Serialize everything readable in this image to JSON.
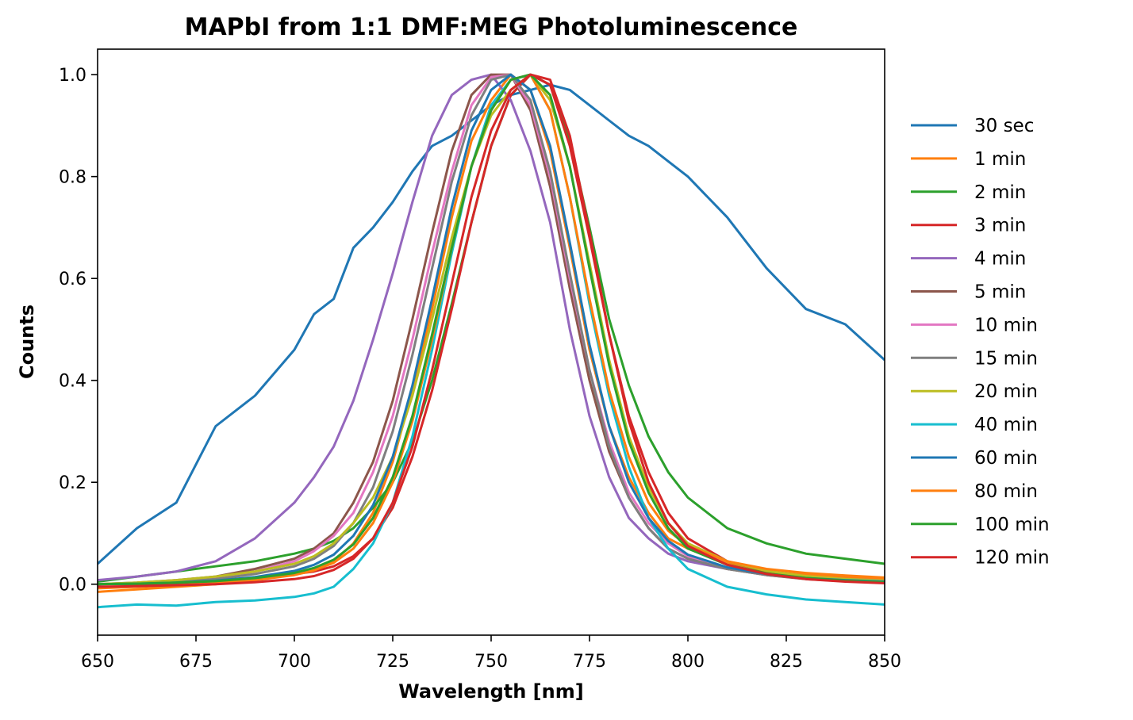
{
  "chart_data": {
    "type": "line",
    "title": "MAPbI from 1:1 DMF:MEG Photoluminescence",
    "xlabel": "Wavelength [nm]",
    "ylabel": "Counts",
    "xlim": [
      650,
      850
    ],
    "ylim": [
      -0.1,
      1.05
    ],
    "xticks": [
      "650",
      "675",
      "700",
      "725",
      "750",
      "775",
      "800",
      "825",
      "850"
    ],
    "yticks": [
      "0.0",
      "0.2",
      "0.4",
      "0.6",
      "0.8",
      "1.0"
    ],
    "grid": false,
    "legend_position": "right, outside plot",
    "x": [
      650,
      660,
      670,
      680,
      690,
      700,
      705,
      710,
      715,
      720,
      725,
      730,
      735,
      740,
      745,
      750,
      755,
      760,
      765,
      770,
      775,
      780,
      785,
      790,
      795,
      800,
      810,
      820,
      830,
      840,
      850
    ],
    "series": [
      {
        "name": "30 sec",
        "color": "#1f77b4",
        "values": [
          0.04,
          0.11,
          0.16,
          0.31,
          0.37,
          0.46,
          0.53,
          0.56,
          0.66,
          0.7,
          0.75,
          0.81,
          0.86,
          0.88,
          0.91,
          0.94,
          0.96,
          0.97,
          0.98,
          0.97,
          0.94,
          0.91,
          0.88,
          0.86,
          0.83,
          0.8,
          0.72,
          0.62,
          0.54,
          0.51,
          0.44
        ]
      },
      {
        "name": "1 min",
        "color": "#ff7f0e",
        "values": [
          -0.015,
          -0.01,
          -0.005,
          0.0,
          0.01,
          0.02,
          0.03,
          0.045,
          0.08,
          0.14,
          0.24,
          0.38,
          0.54,
          0.72,
          0.87,
          0.95,
          1.0,
          0.97,
          0.85,
          0.66,
          0.46,
          0.31,
          0.21,
          0.14,
          0.09,
          0.07,
          0.04,
          0.025,
          0.018,
          0.014,
          0.01
        ]
      },
      {
        "name": "2 min",
        "color": "#2ca02c",
        "values": [
          0.005,
          0.015,
          0.025,
          0.035,
          0.045,
          0.06,
          0.07,
          0.085,
          0.11,
          0.15,
          0.2,
          0.28,
          0.4,
          0.55,
          0.71,
          0.86,
          0.96,
          1.0,
          0.98,
          0.87,
          0.7,
          0.52,
          0.39,
          0.29,
          0.22,
          0.17,
          0.11,
          0.08,
          0.06,
          0.05,
          0.04
        ]
      },
      {
        "name": "3 min",
        "color": "#d62728",
        "values": [
          0.0,
          0.0,
          0.0,
          0.005,
          0.01,
          0.02,
          0.025,
          0.035,
          0.055,
          0.09,
          0.15,
          0.25,
          0.38,
          0.54,
          0.71,
          0.86,
          0.96,
          1.0,
          0.98,
          0.86,
          0.68,
          0.49,
          0.33,
          0.22,
          0.14,
          0.09,
          0.045,
          0.025,
          0.012,
          0.006,
          0.003
        ]
      },
      {
        "name": "4 min",
        "color": "#9467bd",
        "values": [
          0.008,
          0.015,
          0.025,
          0.045,
          0.09,
          0.16,
          0.21,
          0.27,
          0.36,
          0.48,
          0.61,
          0.75,
          0.88,
          0.96,
          0.99,
          1.0,
          0.95,
          0.85,
          0.71,
          0.5,
          0.33,
          0.21,
          0.13,
          0.09,
          0.06,
          0.045,
          0.03,
          0.02,
          0.015,
          0.01,
          0.007
        ]
      },
      {
        "name": "5 min",
        "color": "#8c564b",
        "values": [
          0.0,
          0.003,
          0.008,
          0.015,
          0.03,
          0.05,
          0.07,
          0.1,
          0.16,
          0.24,
          0.36,
          0.52,
          0.69,
          0.85,
          0.96,
          1.0,
          1.0,
          0.93,
          0.78,
          0.58,
          0.4,
          0.26,
          0.17,
          0.11,
          0.07,
          0.05,
          0.03,
          0.018,
          0.01,
          0.006,
          0.004
        ]
      },
      {
        "name": "10 min",
        "color": "#e377c2",
        "values": [
          0.0,
          0.002,
          0.006,
          0.012,
          0.025,
          0.045,
          0.065,
          0.095,
          0.14,
          0.22,
          0.33,
          0.48,
          0.65,
          0.81,
          0.94,
          0.995,
          1.0,
          0.94,
          0.8,
          0.6,
          0.42,
          0.28,
          0.18,
          0.12,
          0.08,
          0.055,
          0.032,
          0.02,
          0.012,
          0.008,
          0.005
        ]
      },
      {
        "name": "15 min",
        "color": "#7f7f7f",
        "values": [
          0.0,
          0.002,
          0.005,
          0.01,
          0.02,
          0.035,
          0.05,
          0.075,
          0.12,
          0.19,
          0.3,
          0.45,
          0.62,
          0.79,
          0.92,
          0.99,
          1.0,
          0.95,
          0.81,
          0.61,
          0.42,
          0.27,
          0.17,
          0.11,
          0.07,
          0.05,
          0.03,
          0.018,
          0.011,
          0.007,
          0.005
        ]
      },
      {
        "name": "20 min",
        "color": "#bcbd22",
        "values": [
          0.0,
          0.003,
          0.008,
          0.015,
          0.025,
          0.04,
          0.055,
          0.08,
          0.12,
          0.17,
          0.25,
          0.37,
          0.52,
          0.68,
          0.82,
          0.92,
          0.97,
          1.0,
          0.95,
          0.82,
          0.63,
          0.44,
          0.29,
          0.19,
          0.12,
          0.08,
          0.045,
          0.026,
          0.016,
          0.01,
          0.007
        ]
      },
      {
        "name": "40 min",
        "color": "#17becf",
        "values": [
          -0.045,
          -0.04,
          -0.042,
          -0.035,
          -0.032,
          -0.025,
          -0.018,
          -0.005,
          0.03,
          0.08,
          0.16,
          0.29,
          0.46,
          0.65,
          0.82,
          0.94,
          0.99,
          1.0,
          0.93,
          0.76,
          0.55,
          0.37,
          0.23,
          0.13,
          0.07,
          0.03,
          -0.005,
          -0.02,
          -0.03,
          -0.035,
          -0.04
        ]
      },
      {
        "name": "60 min",
        "color": "#1f77b4",
        "values": [
          0.0,
          0.001,
          0.003,
          0.007,
          0.014,
          0.026,
          0.038,
          0.058,
          0.095,
          0.155,
          0.25,
          0.39,
          0.56,
          0.74,
          0.89,
          0.97,
          1.0,
          0.97,
          0.86,
          0.67,
          0.47,
          0.31,
          0.2,
          0.13,
          0.085,
          0.058,
          0.033,
          0.02,
          0.012,
          0.008,
          0.005
        ]
      },
      {
        "name": "80 min",
        "color": "#ff7f0e",
        "values": [
          -0.008,
          -0.005,
          -0.002,
          0.002,
          0.008,
          0.018,
          0.027,
          0.042,
          0.07,
          0.12,
          0.2,
          0.32,
          0.48,
          0.66,
          0.82,
          0.93,
          0.99,
          1.0,
          0.93,
          0.76,
          0.56,
          0.38,
          0.25,
          0.16,
          0.105,
          0.075,
          0.045,
          0.03,
          0.022,
          0.017,
          0.013
        ]
      },
      {
        "name": "100 min",
        "color": "#2ca02c",
        "values": [
          0.0,
          0.001,
          0.003,
          0.006,
          0.012,
          0.022,
          0.032,
          0.048,
          0.078,
          0.13,
          0.21,
          0.33,
          0.49,
          0.66,
          0.82,
          0.93,
          0.99,
          1.0,
          0.96,
          0.82,
          0.62,
          0.43,
          0.28,
          0.18,
          0.11,
          0.07,
          0.038,
          0.021,
          0.012,
          0.007,
          0.004
        ]
      },
      {
        "name": "120 min",
        "color": "#d62728",
        "values": [
          -0.005,
          -0.004,
          -0.002,
          0.0,
          0.004,
          0.01,
          0.016,
          0.028,
          0.05,
          0.09,
          0.16,
          0.27,
          0.42,
          0.59,
          0.76,
          0.89,
          0.97,
          1.0,
          0.99,
          0.88,
          0.69,
          0.49,
          0.32,
          0.2,
          0.12,
          0.075,
          0.038,
          0.02,
          0.01,
          0.005,
          0.002
        ]
      }
    ]
  }
}
